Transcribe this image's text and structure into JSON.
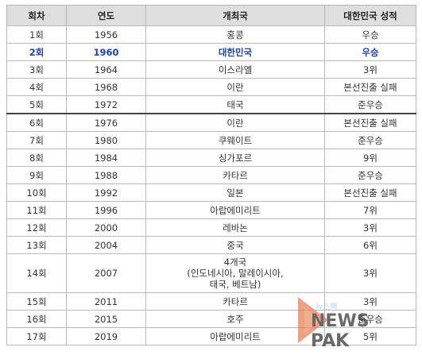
{
  "headers": [
    "회차",
    "연도",
    "개최국",
    "대한민국 성적"
  ],
  "rows": [
    {
      "round": "1회",
      "year": "1956",
      "host": [
        "홍콩"
      ],
      "result": "우승"
    },
    {
      "round": "2회",
      "year": "1960",
      "host": [
        "대한민국"
      ],
      "result": "우승"
    },
    {
      "round": "3회",
      "year": "1964",
      "host": [
        "이스라엘"
      ],
      "result": "3위"
    },
    {
      "round": "4회",
      "year": "1968",
      "host": [
        "이란"
      ],
      "result": "본선진출 실패"
    },
    {
      "round": "5회",
      "year": "1972",
      "host": [
        "태국"
      ],
      "result": "준우승"
    },
    {
      "round": "6회",
      "year": "1976",
      "host": [
        "이란"
      ],
      "result": "본선진출 실패"
    },
    {
      "round": "7회",
      "year": "1980",
      "host": [
        "쿠웨이트"
      ],
      "result": "준우승"
    },
    {
      "round": "8회",
      "year": "1984",
      "host": [
        "싱가포르"
      ],
      "result": "9위"
    },
    {
      "round": "9회",
      "year": "1988",
      "host": [
        "카타르"
      ],
      "result": "준우승"
    },
    {
      "round": "10회",
      "year": "1992",
      "host": [
        "일본"
      ],
      "result": "본선진출 실패"
    },
    {
      "round": "11회",
      "year": "1996",
      "host": [
        "아랍에미리트"
      ],
      "result": "7위"
    },
    {
      "round": "12회",
      "year": "2000",
      "host": [
        "레바논"
      ],
      "result": "3위"
    },
    {
      "round": "13회",
      "year": "2004",
      "host": [
        "중국"
      ],
      "result": "6위"
    },
    {
      "round": "14회",
      "year": "2007",
      "host": [
        "4개국",
        "(인도네시아, 말레이시아,",
        "태국, 베트남)"
      ],
      "result": "3위"
    },
    {
      "round": "15회",
      "year": "2011",
      "host": [
        "카타르"
      ],
      "result": "3위"
    },
    {
      "round": "16회",
      "year": "2015",
      "host": [
        "호주"
      ],
      "result": "준우승"
    },
    {
      "round": "17회",
      "year": "2019",
      "host": [
        "아랍에미리트"
      ],
      "result": "5위"
    }
  ],
  "watermark": {
    "small": "뉴스팩",
    "text": "NEWS PAK"
  }
}
